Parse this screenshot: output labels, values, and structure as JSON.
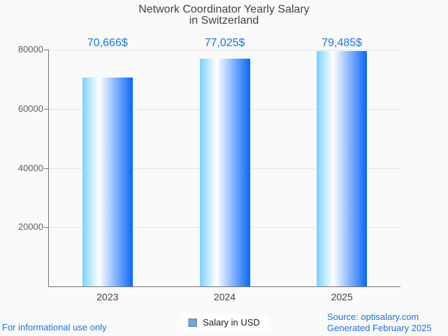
{
  "title": {
    "line1": "Network Coordinator Yearly Salary",
    "line2": "in Switzerland"
  },
  "chart_data": {
    "type": "bar",
    "title": "Network Coordinator Yearly Salary in Switzerland",
    "categories": [
      "2023",
      "2024",
      "2025"
    ],
    "values": [
      70666,
      77025,
      79485
    ],
    "value_labels": [
      "70,666$",
      "77,025$",
      "79,485$"
    ],
    "series": [
      {
        "name": "Salary in USD",
        "values": [
          70666,
          77025,
          79485
        ]
      }
    ],
    "xlabel": "",
    "ylabel": "",
    "ylim": [
      0,
      80000
    ],
    "yticks": [
      20000,
      40000,
      60000,
      80000
    ],
    "ytick_labels": [
      "20000",
      "40000",
      "60000",
      "80000"
    ],
    "grid": true,
    "legend_position": "bottom-center"
  },
  "legend": {
    "label": "Salary in USD",
    "marker_fill": "#6fa8dc",
    "marker_border": "#4a7ebb"
  },
  "footer": {
    "left": "For informational use only",
    "source": "Source: optisalary.com",
    "generated": "Generated February 2025"
  },
  "colors": {
    "background": "#fafafa",
    "accent_blue": "#1a73e8",
    "title_gray": "#424242",
    "axis_label_gray": "#5f5f5f",
    "gridline": "#e4e4e4",
    "axis_line": "#757575",
    "bar_gradient_left": "#7ed1fb",
    "bar_gradient_mid": "#ffffff",
    "bar_gradient_right": "#0767fa",
    "legend_text": "#1a1a1a"
  }
}
